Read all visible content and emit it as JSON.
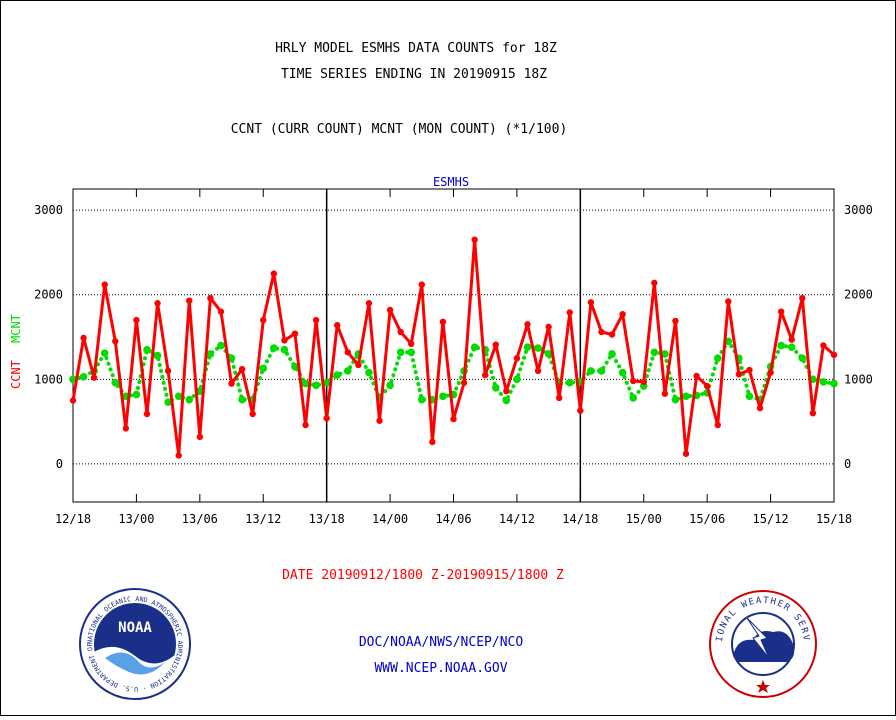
{
  "header": {
    "line1": "HRLY MODEL ESMHS DATA COUNTS for 18Z",
    "line2": "TIME SERIES ENDING IN 20190915 18Z",
    "line3": "CCNT (CURR COUNT) MCNT (MON COUNT) (*1/100)"
  },
  "footer": {
    "date_range": "DATE 20190912/1800 Z-20190915/1800 Z",
    "org": "DOC/NOAA/NWS/NCEP/NCO",
    "url": "WWW.NCEP.NOAA.GOV"
  },
  "logos": {
    "noaa": {
      "name": "noaa-logo",
      "center_text": "NOAA",
      "ring_text": "NATIONAL OCEANIC AND ATMOSPHERIC ADMINISTRATION · U.S. DEPARTMENT OF COMMERCE"
    },
    "nws": {
      "name": "nws-logo",
      "ring_text": "NATIONAL WEATHER SERVICE"
    }
  },
  "colors": {
    "ccnt": "#ff0000",
    "mcnt": "#00dd00",
    "footer_blue": "#0000cc",
    "footer_red": "#ff0000"
  },
  "chart_data": {
    "type": "line",
    "title": "ESMHS",
    "ylabel_ccnt": "CCNT",
    "ylabel_mcnt": "MCNT",
    "ylim": [
      -450,
      3250
    ],
    "yticks": [
      0,
      1000,
      2000,
      3000
    ],
    "ytick_labels": [
      "0",
      "1000",
      "2000",
      "3000"
    ],
    "xlim": [
      0,
      72
    ],
    "xticks": [
      0,
      6,
      12,
      18,
      24,
      30,
      36,
      42,
      48,
      54,
      60,
      66,
      72
    ],
    "xtick_labels": [
      "12/18",
      "13/00",
      "13/06",
      "13/12",
      "13/18",
      "14/00",
      "14/06",
      "14/12",
      "14/18",
      "15/00",
      "15/06",
      "15/12",
      "15/18"
    ],
    "day_boundaries": [
      24,
      48
    ],
    "grid": true,
    "series": [
      {
        "name": "CCNT",
        "color": "#ff0000",
        "style": "solid",
        "x": [
          0,
          1,
          2,
          3,
          4,
          5,
          6,
          7,
          8,
          9,
          10,
          11,
          12,
          13,
          14,
          15,
          16,
          17,
          18,
          19,
          20,
          21,
          22,
          23,
          24,
          25,
          26,
          27,
          28,
          29,
          30,
          31,
          32,
          33,
          34,
          35,
          36,
          37,
          38,
          39,
          40,
          41,
          42,
          43,
          44,
          45,
          46,
          47,
          48,
          49,
          50,
          51,
          52,
          53,
          54,
          55,
          56,
          57,
          58,
          59,
          60,
          61,
          62,
          63,
          64,
          65,
          66,
          67,
          68,
          69,
          70,
          71,
          72
        ],
        "values": [
          750,
          1490,
          1020,
          2120,
          1450,
          420,
          1700,
          590,
          1900,
          1100,
          100,
          1930,
          320,
          1960,
          1800,
          950,
          1120,
          590,
          1700,
          2250,
          1460,
          1540,
          460,
          1700,
          540,
          1640,
          1320,
          1170,
          1900,
          510,
          1820,
          1560,
          1420,
          2120,
          260,
          1680,
          530,
          960,
          2650,
          1050,
          1410,
          860,
          1250,
          1650,
          1100,
          1620,
          780,
          1790,
          630,
          1910,
          1560,
          1530,
          1770,
          980,
          970,
          2140,
          830,
          1690,
          120,
          1040,
          920,
          460,
          1920,
          1060,
          1110,
          660,
          1080,
          1800,
          1470,
          1960,
          600,
          1400,
          1290
        ]
      },
      {
        "name": "MCNT",
        "color": "#00dd00",
        "style": "dotted",
        "x": [
          0,
          1,
          2,
          3,
          4,
          5,
          6,
          7,
          8,
          9,
          10,
          11,
          12,
          13,
          14,
          15,
          16,
          17,
          18,
          19,
          20,
          21,
          22,
          23,
          24,
          25,
          26,
          27,
          28,
          29,
          30,
          31,
          32,
          33,
          34,
          35,
          36,
          37,
          38,
          39,
          40,
          41,
          42,
          43,
          44,
          45,
          46,
          47,
          48,
          49,
          50,
          51,
          52,
          53,
          54,
          55,
          56,
          57,
          58,
          59,
          60,
          61,
          62,
          63,
          64,
          65,
          66,
          67,
          68,
          69,
          70,
          71,
          72
        ],
        "values": [
          1000,
          1030,
          1100,
          1310,
          960,
          800,
          820,
          1350,
          1280,
          730,
          800,
          760,
          860,
          1300,
          1400,
          1250,
          760,
          760,
          1130,
          1370,
          1350,
          1150,
          950,
          930,
          960,
          1050,
          1100,
          1300,
          1080,
          780,
          930,
          1320,
          1320,
          760,
          760,
          800,
          820,
          1100,
          1380,
          1350,
          900,
          750,
          1000,
          1380,
          1370,
          1300,
          950,
          960,
          970,
          1100,
          1100,
          1300,
          1080,
          780,
          920,
          1320,
          1300,
          760,
          800,
          810,
          840,
          1250,
          1450,
          1250,
          800,
          760,
          1150,
          1400,
          1380,
          1250,
          1000,
          970,
          950
        ]
      }
    ]
  }
}
